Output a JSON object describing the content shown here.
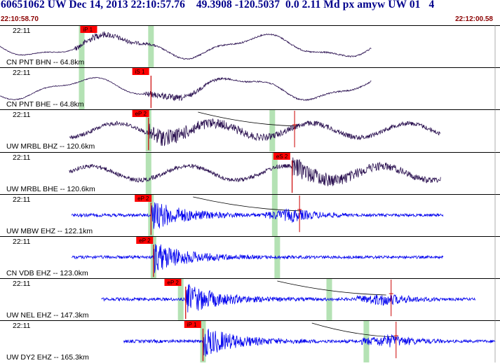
{
  "header": {
    "title": "60651062 UW Dec 14, 2013 22:10:57.76    49.3908 -120.5037  0.0 2.11 Md px amyw UW 01   4",
    "start_time": "22:10:58.70",
    "end_time": "22:12:00.58"
  },
  "colors": {
    "header_text": "#00008b",
    "time_text": "#8b0000",
    "trace_dark": "#2a1050",
    "trace_blue": "#0000ee",
    "pick_flag": "#ff0000",
    "green_band": "#b4e2b4",
    "pick_line": "#cc0000"
  },
  "channels": [
    {
      "time_label": "22:11",
      "station_label": "CN PNT BHN -- 64.8km",
      "color": "dark",
      "pick_label": "iP 1",
      "pick_index": 0,
      "picks_flag_pos": 0.165,
      "green": [
        0.165,
        0.305
      ],
      "red_line": null,
      "start": 0.0,
      "end": 0.75,
      "kind": "lowfreq",
      "second_pick": null,
      "curve": null
    },
    {
      "time_label": "22:11",
      "station_label": "CN PNT BHE -- 64.8km",
      "color": "dark",
      "pick_label": "iS 1",
      "pick_index": 1,
      "picks_flag_pos": 0.27,
      "green": [
        0.165
      ],
      "red_line": 0.305,
      "start": 0.0,
      "end": 0.75,
      "kind": "lowfreq",
      "second_pick": null,
      "curve": null
    },
    {
      "time_label": "22:11",
      "station_label": "UW MRBL BHZ -- 120.6km",
      "color": "dark",
      "pick_label": "eP 2",
      "pick_index": 2,
      "picks_flag_pos": 0.27,
      "green": [
        0.3,
        0.55
      ],
      "red_line": 0.3,
      "start": 0.14,
      "end": 0.89,
      "kind": "mixed",
      "second_pick": {
        "pos": 0.595,
        "label": ""
      },
      "curve": [
        0.4,
        0.6
      ]
    },
    {
      "time_label": "22:11",
      "station_label": "UW MRBL BHE -- 120.6km",
      "color": "dark",
      "pick_label": "eS 2",
      "pick_index": 3,
      "picks_flag_pos": 0.555,
      "green": [
        0.3,
        0.555
      ],
      "red_line": 0.59,
      "start": 0.14,
      "end": 0.89,
      "kind": "mixed",
      "second_pick": null,
      "curve": null
    },
    {
      "time_label": "22:11",
      "station_label": "UW MBW EHZ -- 122.1km",
      "color": "blue",
      "pick_label": "eP 2",
      "pick_index": 4,
      "picks_flag_pos": 0.275,
      "green": [
        0.305,
        0.555
      ],
      "red_line": 0.305,
      "start": 0.145,
      "end": 0.895,
      "kind": "quake",
      "second_pick": {
        "pos": 0.605,
        "label": ""
      },
      "curve": [
        0.39,
        0.61
      ]
    },
    {
      "time_label": "22:11",
      "station_label": "CN VDB EHZ -- 123.0km",
      "color": "blue",
      "pick_label": "eP 2",
      "pick_index": 5,
      "picks_flag_pos": 0.278,
      "green": [
        0.31,
        0.56
      ],
      "red_line": 0.31,
      "start": 0.145,
      "end": 0.895,
      "kind": "quake",
      "second_pick": null,
      "curve": null
    },
    {
      "time_label": "22:11",
      "station_label": "UW NEL EHZ -- 147.3km",
      "color": "blue",
      "pick_label": "eP 2",
      "pick_index": 6,
      "picks_flag_pos": 0.335,
      "green": [
        0.365,
        0.665
      ],
      "red_line": 0.375,
      "start": 0.205,
      "end": 0.96,
      "kind": "quake",
      "second_pick": {
        "pos": 0.79,
        "label": ""
      },
      "curve": [
        0.56,
        0.78
      ]
    },
    {
      "time_label": "22:11",
      "station_label": "UW DY2 EHZ -- 165.3km",
      "color": "blue",
      "pick_label": "iP 1",
      "pick_index": 7,
      "picks_flag_pos": 0.375,
      "green": [
        0.41,
        0.74
      ],
      "red_line": 0.41,
      "start": 0.25,
      "end": 1.0,
      "kind": "quake",
      "second_pick": {
        "pos": 0.8,
        "label": ""
      },
      "curve": [
        0.63,
        0.8
      ]
    }
  ]
}
